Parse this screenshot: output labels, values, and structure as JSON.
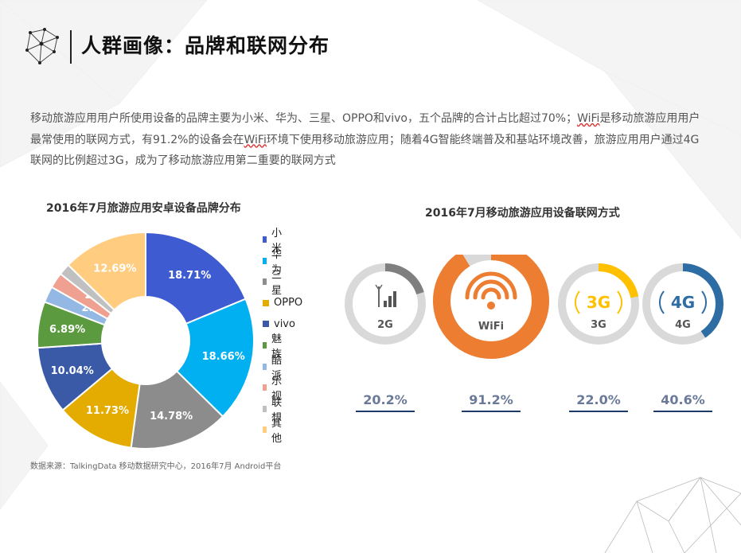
{
  "header": {
    "title": "人群画像：品牌和联网分布"
  },
  "intro": {
    "part1": "移动旅游应用用户所使用设备的品牌主要为小米、华为、三星、OPPO和vivo，五个品牌的合计占比超过70%；",
    "wifi1": "WiFi",
    "part2": "是移动旅游应用用户最常使用的联网方式，有91.2%的设备会在",
    "wifi2": "WiFi",
    "part3": "环境下使用移动旅游应用；随着4G智能终端普及和基站环境改善，旅游应用用户通过4G联网的比例超过3G，成为了移动旅游应用第二重要的联网方式"
  },
  "source": "数据来源：TalkingData 移动数据研究中心，2016年7月 Android平台",
  "chart_data": [
    {
      "type": "pie",
      "title": "2016年7月旅游应用安卓设备品牌分布",
      "legend_position": "right",
      "categories": [
        "小米",
        "华为",
        "三星",
        "OPPO",
        "vivo",
        "魅族",
        "酷派",
        "乐视",
        "联想",
        "其他"
      ],
      "values": [
        18.71,
        18.66,
        14.78,
        11.73,
        10.04,
        6.89,
        2.42,
        2.33,
        1.74,
        12.69
      ],
      "labels": [
        "18.71%",
        "18.66%",
        "14.78%",
        "11.73%",
        "10.04%",
        "6.89%",
        "2.42%",
        "2.33%",
        "1.74%",
        "12.69%"
      ],
      "colors": [
        "#3f5bd1",
        "#00b0f0",
        "#8c8c8c",
        "#e4ac00",
        "#3a5aa8",
        "#5b9a3e",
        "#94b8e4",
        "#f0a090",
        "#c0c0c0",
        "#ffcc80"
      ],
      "label_colors": [
        "#ffffff",
        "#ffffff",
        "#ffffff",
        "#ffffff",
        "#ffffff",
        "#ffffff",
        "#ffffff",
        "#ffffff",
        "#ffffff",
        "#ffffff"
      ]
    },
    {
      "type": "bar",
      "title": "2016年7月移动旅游应用设备联网方式",
      "categories": [
        "2G",
        "WiFi",
        "3G",
        "4G"
      ],
      "values": [
        20.2,
        91.2,
        22.0,
        40.6
      ],
      "labels": [
        "20.2%",
        "91.2%",
        "22.0%",
        "40.6%"
      ],
      "colors": [
        "#7f7f7f",
        "#ed7d31",
        "#ffc000",
        "#2e6da4"
      ],
      "track_color": "#d9d9d9"
    }
  ]
}
